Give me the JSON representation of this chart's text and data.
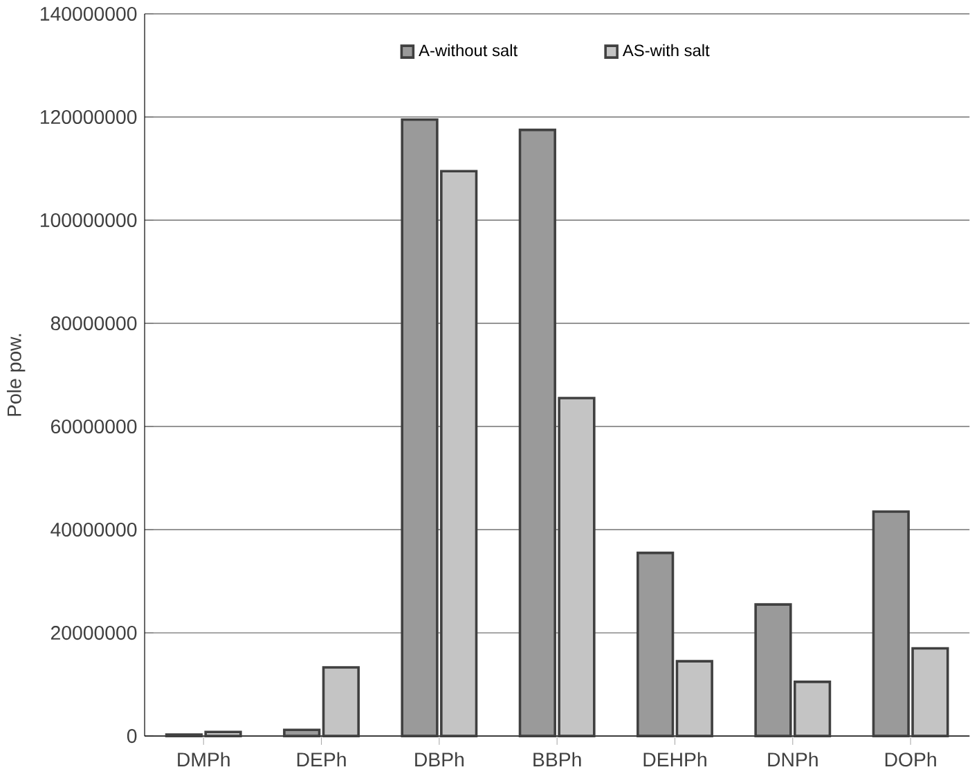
{
  "chart_data": {
    "type": "bar",
    "ylabel": "Pole pow.",
    "categories": [
      "DMPh",
      "DEPh",
      "DBPh",
      "BBPh",
      "DEHPh",
      "DNPh",
      "DOPh"
    ],
    "series": [
      {
        "name": "A-without salt",
        "color": "#9a9a9a",
        "values": [
          300000,
          1200000,
          119500000,
          117500000,
          35500000,
          25500000,
          43500000
        ]
      },
      {
        "name": "AS-with salt",
        "color": "#c4c4c4",
        "values": [
          800000,
          13300000,
          109500000,
          65500000,
          14500000,
          10500000,
          17000000
        ]
      }
    ],
    "ylim": [
      0,
      140000000
    ],
    "yticks": [
      0,
      20000000,
      40000000,
      60000000,
      80000000,
      100000000,
      120000000,
      140000000
    ],
    "grid": "y",
    "legend": "top"
  }
}
